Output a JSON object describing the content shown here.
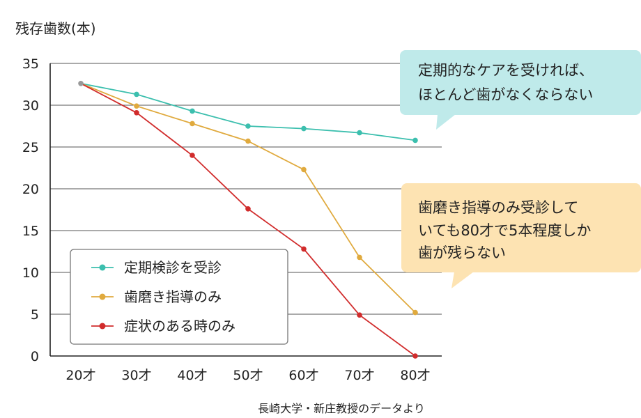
{
  "chart_data": {
    "type": "line",
    "ylabel": "残存歯数(本)",
    "categories": [
      "20才",
      "30才",
      "40才",
      "50才",
      "60才",
      "70才",
      "80才"
    ],
    "yticks": [
      0,
      5,
      10,
      15,
      20,
      25,
      30,
      35
    ],
    "ylim": [
      0,
      35
    ],
    "grid": "horizontal",
    "legend_position": "bottom-left",
    "series": [
      {
        "name": "定期検診を受診",
        "color": "#3cbfae",
        "values": [
          32.6,
          31.3,
          29.3,
          27.5,
          27.2,
          26.7,
          25.8
        ]
      },
      {
        "name": "歯磨き指導のみ",
        "color": "#e0aa3e",
        "values": [
          32.6,
          29.9,
          27.8,
          25.7,
          22.3,
          11.8,
          5.2
        ]
      },
      {
        "name": "症状のある時のみ",
        "color": "#d12c2c",
        "values": [
          32.6,
          29.1,
          24.0,
          17.6,
          12.8,
          4.9,
          0
        ]
      }
    ],
    "start_point_color": "#999999",
    "callouts": [
      {
        "lines": [
          "定期的なケアを受ければ、",
          "ほとんど歯がなくならない"
        ],
        "bg": "#bfeaea"
      },
      {
        "lines": [
          "歯磨き指導のみ受診して",
          "いても80才で5本程度しか",
          "歯が残らない"
        ],
        "bg": "#fde3b2"
      }
    ],
    "source": "長崎大学・新庄教授のデータより"
  }
}
